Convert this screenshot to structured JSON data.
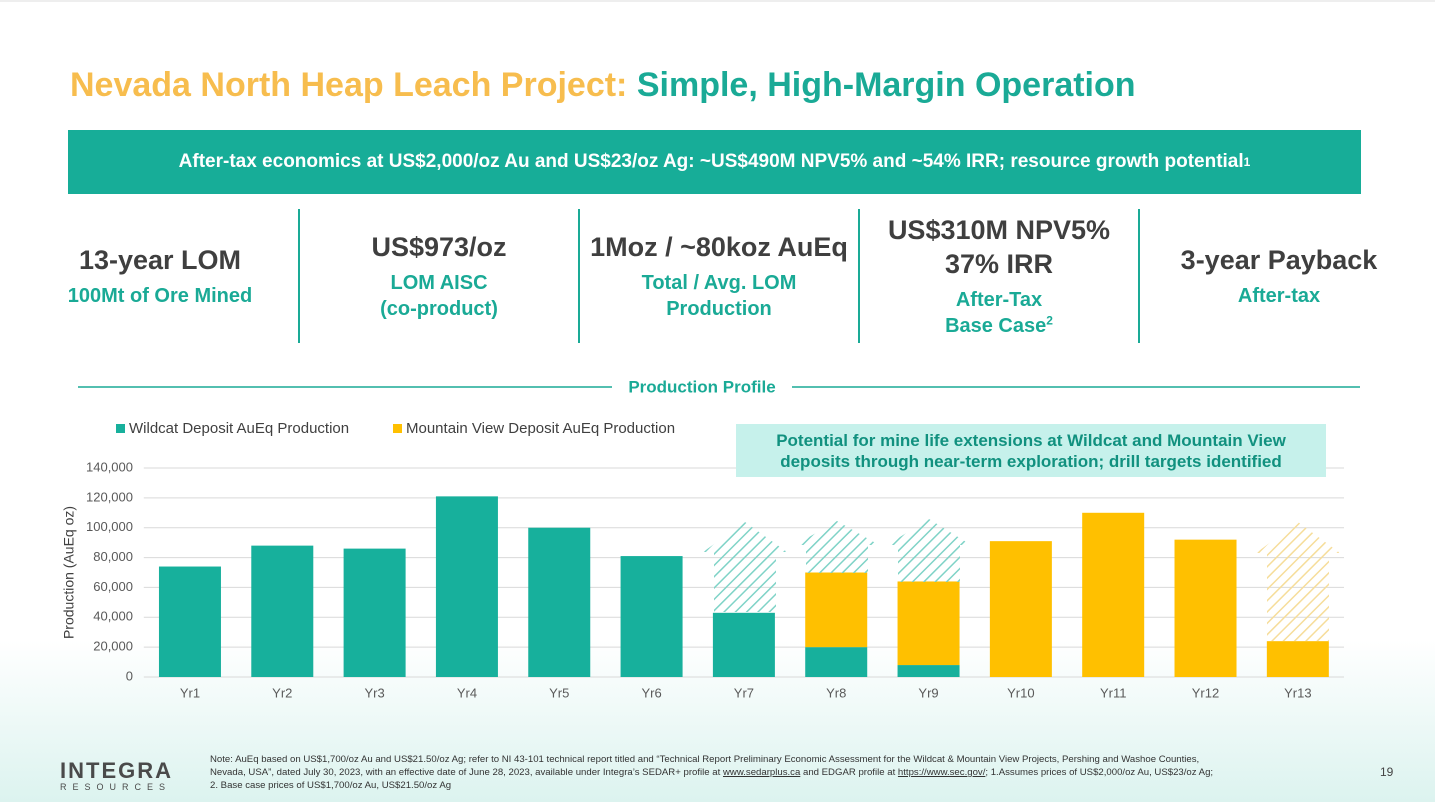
{
  "title_lead": "Nevada North Heap Leach Project:",
  "title_rest": "Simple, High-Margin Operation",
  "banner": {
    "text": "After-tax economics at US$2,000/oz Au and US$23/oz Ag: ~US$490M NPV5% and ~54% IRR; resource growth potential",
    "sup": "1"
  },
  "kpis": [
    {
      "main": "13-year LOM",
      "sub": "100Mt of Ore Mined"
    },
    {
      "main": "US$973/oz",
      "sub": "LOM AISC",
      "sub2": "(co-product)"
    },
    {
      "main": "1Moz / ~80koz AuEq",
      "sub": "Total / Avg. LOM",
      "sub2": "Production"
    },
    {
      "main": "US$310M NPV5%",
      "main2": "37% IRR",
      "sub": "After-Tax",
      "sub2": "Base Case",
      "sup": "2"
    },
    {
      "main": "3-year Payback",
      "sub": "After-tax"
    }
  ],
  "section_title": "Production Profile",
  "callout": {
    "line1": "Potential for mine life extensions at Wildcat and Mountain View",
    "line2": "deposits through near-term exploration; drill targets identified"
  },
  "chart_data": {
    "type": "bar",
    "stacked": true,
    "y_label": "Production (AuEq oz)",
    "categories": [
      "Yr1",
      "Yr2",
      "Yr3",
      "Yr4",
      "Yr5",
      "Yr6",
      "Yr7",
      "Yr8",
      "Yr9",
      "Yr10",
      "Yr11",
      "Yr12",
      "Yr13"
    ],
    "series": [
      {
        "name": "Wildcat Deposit AuEq Production",
        "color": "#17b09c",
        "values": [
          74000,
          88000,
          86000,
          121000,
          100000,
          81000,
          43000,
          20000,
          8000,
          0,
          0,
          0,
          0
        ]
      },
      {
        "name": "Mountain View Deposit AuEq Production",
        "color": "#ffc000",
        "values": [
          0,
          0,
          0,
          0,
          0,
          0,
          0,
          50000,
          56000,
          91000,
          110000,
          92000,
          24000
        ]
      }
    ],
    "ylim": [
      0,
      140000
    ],
    "yticks": [
      0,
      {
        "value": 20000,
        "label": "20,000"
      },
      {
        "value": 40000,
        "label": "40,000"
      },
      {
        "value": 60000,
        "label": "60,000"
      },
      {
        "value": 80000,
        "label": "80,000"
      },
      {
        "value": 100000,
        "label": "100,000"
      },
      {
        "value": 120000,
        "label": "120,000"
      },
      {
        "value": 140000,
        "label": "140,000"
      }
    ],
    "grid": true,
    "legend": "top-left"
  },
  "logo": {
    "name": "INTEGRA",
    "sub": "RESOURCES"
  },
  "note": {
    "line1": "Note: AuEq based on US$1,700/oz Au and US$21.50/oz Ag; refer to NI 43-101 technical report titled and “Technical Report Preliminary Economic Assessment for the Wildcat & Mountain View Projects, Pershing and Washoe Counties,",
    "line2a": "Nevada, USA”, dated July 30, 2023, with an effective date of June 28, 2023, available under Integra’s SEDAR+ profile at",
    "link1": "www.sedarplus.ca",
    "line2b": "and EDGAR profile at",
    "link2": "https://www.sec.gov/",
    "line2c": "; 1.Assumes prices of US$2,000/oz Au, US$23/oz Ag;",
    "line3": "2. Base case prices of US$1,700/oz Au, US$21.50/oz Ag"
  },
  "page_number": "19"
}
